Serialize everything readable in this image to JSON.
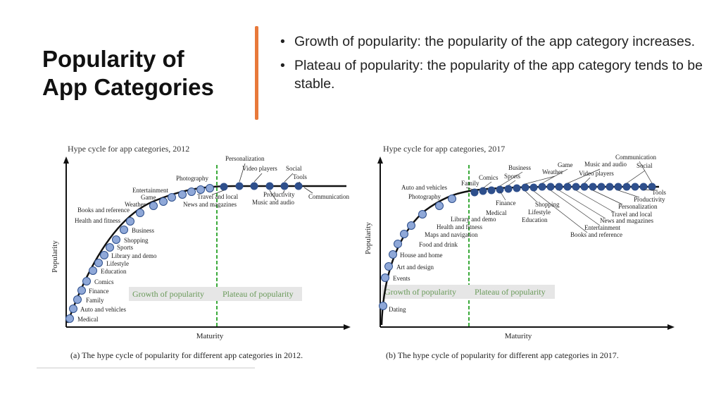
{
  "slide": {
    "title_line1": "Popularity of",
    "title_line2": "App Categories",
    "bullets": [
      "Growth of popularity: the popularity of the app category increases.",
      "Plateau of popularity: the popularity of the app category tends to be stable."
    ],
    "accent_color": "#e8793a"
  },
  "figures": [
    {
      "header": "Hype cycle for app categories, 2012",
      "caption": "(a)  The hype cycle of popularity for different app categories in 2012.",
      "xlabel": "Maturity",
      "ylabel": "Popularity",
      "phase_left": "Growth of popularity",
      "phase_right": "Plateau of popularity",
      "labels_growth": [
        "Medical",
        "Auto and vehicles",
        "Family",
        "Finance",
        "Comics",
        "Education",
        "Lifestyle",
        "Library and demo",
        "Sports",
        "Shopping",
        "Business",
        "Health and fitness",
        "Books and reference",
        "Weather",
        "Game",
        "Entertainment",
        "Photography"
      ],
      "labels_plateau": [
        "Personalization",
        "Video players",
        "Social",
        "Tools",
        "Travel and local",
        "News and magazines",
        "Productivity",
        "Music and audio",
        "Communication"
      ]
    },
    {
      "header": "Hype cycle for app categories, 2017",
      "caption": "(b)  The hype cycle of popularity for different app categories in 2017.",
      "xlabel": "Maturity",
      "ylabel": "Popularity",
      "phase_left": "Growth of popularity",
      "phase_right": "Plateau of popularity",
      "labels_growth": [
        "Dating",
        "Events",
        "Art and design",
        "House and home",
        "Food and drink",
        "Maps and navigation",
        "Health and fitness",
        "Library and demo",
        "Photography",
        "Auto and vehicles"
      ],
      "labels_plateau": [
        "Family",
        "Comics",
        "Business",
        "Sports",
        "Weather",
        "Game",
        "Music and audio",
        "Social",
        "Communication",
        "Video players",
        "Finance",
        "Medical",
        "Shopping",
        "Lifestyle",
        "Education",
        "Tools",
        "Productivity",
        "Personalization",
        "Travel and local",
        "News and magazines",
        "Entertainment",
        "Books and reference"
      ]
    }
  ],
  "colors": {
    "growth_point": "#8fa8d8",
    "plateau_point": "#2e4f8c",
    "threshold_line": "#3aaa3a",
    "phase_box": "#e6e6e6",
    "phase_text": "#6a9a5a"
  }
}
